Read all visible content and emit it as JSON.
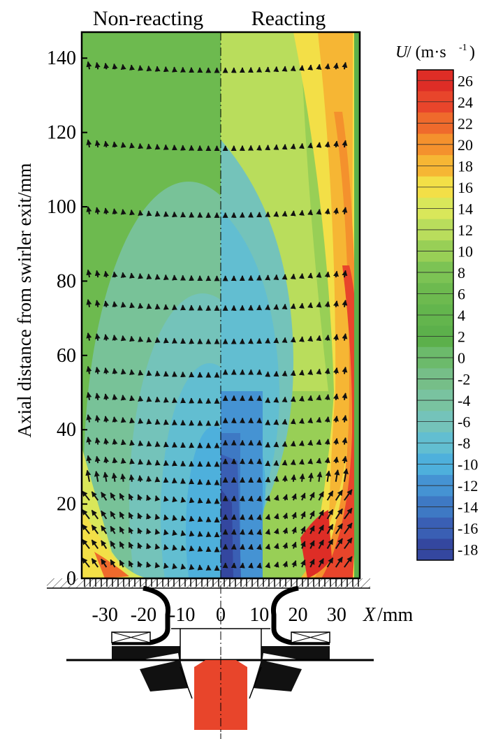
{
  "chart_data": {
    "type": "heatmap",
    "panels": [
      "Non-reacting",
      "Reacting"
    ],
    "ylabel": "Axial distance from swirler exit/mm",
    "xlabel_var": "X",
    "xlabel_unit": "/mm",
    "xticks": [
      -30,
      -20,
      -10,
      0,
      10,
      20,
      30
    ],
    "yticks": [
      0,
      20,
      40,
      60,
      80,
      100,
      120,
      140
    ],
    "xlim": [
      -36,
      36
    ],
    "ylim": [
      0,
      147
    ],
    "colorbar": {
      "title_var": "U",
      "title_unit": "/ (m·s",
      "title_exp": "-1",
      "title_close": ")",
      "levels": [
        26,
        24,
        22,
        20,
        18,
        16,
        14,
        12,
        10,
        8,
        6,
        4,
        2,
        0,
        -2,
        -4,
        -6,
        -8,
        -10,
        -12,
        -14,
        -16,
        -18
      ],
      "colors": [
        "#de2d26",
        "#e8452b",
        "#ef6a2c",
        "#f4912d",
        "#f6b634",
        "#f3df47",
        "#d9e75a",
        "#b9dd5c",
        "#98cf56",
        "#7cc354",
        "#6dba4f",
        "#63b54d",
        "#5cb04b",
        "#6cba6b",
        "#76be88",
        "#79c3a0",
        "#74c3ba",
        "#62bed1",
        "#4eb0dc",
        "#4593d3",
        "#3e79c4",
        "#3a5fb4",
        "#34479f"
      ]
    },
    "velocity_sections_mm": [
      3,
      8,
      12,
      16,
      21,
      26,
      31,
      36,
      42,
      48,
      55,
      64,
      73,
      81,
      98,
      116,
      137
    ]
  }
}
